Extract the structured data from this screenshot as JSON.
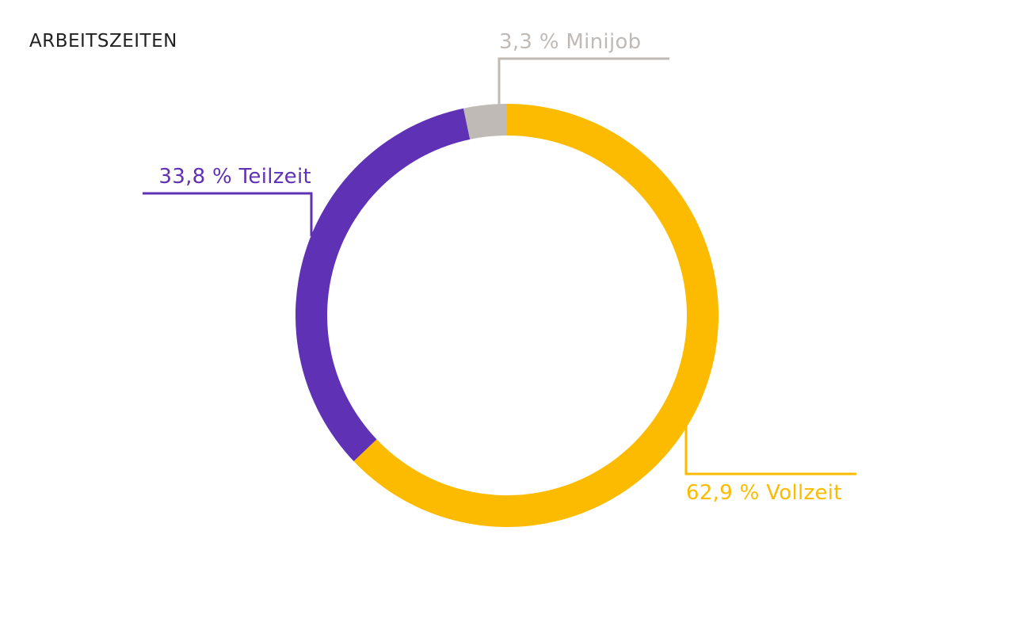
{
  "chart_data": {
    "type": "pie",
    "title": "ARBEITSZEITEN",
    "slices": [
      {
        "label": "Vollzeit",
        "value": 62.9,
        "display": "62,9 % Vollzeit",
        "color": "#FDBB00"
      },
      {
        "label": "Teilzeit",
        "value": 33.8,
        "display": "33,8 % Teilzeit",
        "color": "#5F31B4"
      },
      {
        "label": "Minijob",
        "value": 3.3,
        "display": "3,3 % Minijob",
        "color": "#BFBAB6"
      }
    ],
    "start": "top",
    "direction": "clockwise"
  }
}
